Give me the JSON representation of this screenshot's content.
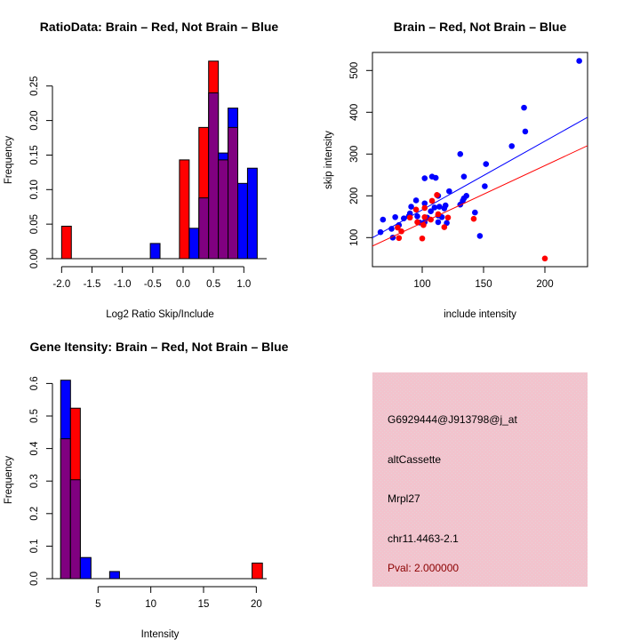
{
  "colors": {
    "brain": "#ff0000",
    "not_brain": "#0000ff",
    "overlap": "#800080",
    "panel_bg": "#f2c3cd",
    "pval": "#8b0000"
  },
  "chart_data": [
    {
      "type": "bar",
      "title": "RatioData: Brain – Red, Not Brain – Blue",
      "xlabel": "Log2 Ratio Skip/Include",
      "ylabel": "Frequency",
      "xticks": [
        -2.0,
        -1.5,
        -1.0,
        -0.5,
        0.0,
        0.5,
        1.0
      ],
      "xtick_labels": [
        "-2.0",
        "-1.5",
        "-1.0",
        "-0.5",
        "0.0",
        "0.5",
        "1.0"
      ],
      "yticks": [
        0,
        0.05,
        0.1,
        0.15,
        0.2,
        0.25
      ],
      "ytick_labels": [
        "0.00",
        "0.05",
        "0.10",
        "0.15",
        "0.20",
        "0.25"
      ],
      "bin_edges": [
        [
          -2.0,
          -1.84
        ],
        [
          -0.54,
          -0.38
        ],
        [
          -0.06,
          0.1
        ],
        [
          0.1,
          0.26
        ],
        [
          0.26,
          0.42
        ],
        [
          0.42,
          0.58
        ],
        [
          0.58,
          0.74
        ],
        [
          0.74,
          0.9
        ],
        [
          0.9,
          1.06
        ],
        [
          1.06,
          1.22
        ]
      ],
      "series": [
        {
          "name": "Brain",
          "color": "red",
          "values": [
            0.047,
            0,
            0.143,
            0,
            0.19,
            0.286,
            0.143,
            0.19,
            0,
            0
          ]
        },
        {
          "name": "Not Brain",
          "color": "blue",
          "values": [
            0,
            0.022,
            0,
            0.044,
            0.088,
            0.24,
            0.153,
            0.218,
            0.109,
            0.131
          ]
        }
      ]
    },
    {
      "type": "scatter",
      "title": "Brain – Red, Not Brain – Blue",
      "xlabel": "include intensity",
      "ylabel": "skip intensity",
      "xlim": [
        59,
        235
      ],
      "ylim": [
        30,
        543
      ],
      "xticks": [
        100,
        150,
        200
      ],
      "xtick_labels": [
        "100",
        "150",
        "200"
      ],
      "yticks": [
        100,
        200,
        300,
        400,
        500
      ],
      "ytick_labels": [
        "100",
        "200",
        "300",
        "400",
        "500"
      ],
      "series": [
        {
          "name": "Not Brain",
          "color": "blue",
          "points": [
            [
              228,
              523
            ],
            [
              183,
              411
            ],
            [
              184,
              354
            ],
            [
              173,
              319
            ],
            [
              131,
              300
            ],
            [
              152,
              276
            ],
            [
              151,
              223
            ],
            [
              134,
              246
            ],
            [
              108,
              246
            ],
            [
              111,
              243
            ],
            [
              102,
              242
            ],
            [
              122,
              211
            ],
            [
              113,
              200
            ],
            [
              136,
              200
            ],
            [
              134,
              194
            ],
            [
              133,
              188
            ],
            [
              131,
              179
            ],
            [
              95,
              189
            ],
            [
              102,
              182
            ],
            [
              91,
              174
            ],
            [
              110,
              172
            ],
            [
              114,
              174
            ],
            [
              119,
              177
            ],
            [
              118,
              170
            ],
            [
              107,
              163
            ],
            [
              90,
              158
            ],
            [
              96,
              151
            ],
            [
              89,
              151
            ],
            [
              116,
              149
            ],
            [
              104,
              148
            ],
            [
              85,
              146
            ],
            [
              78,
              149
            ],
            [
              68,
              143
            ],
            [
              81,
              130
            ],
            [
              75,
              121
            ],
            [
              66,
              113
            ],
            [
              76,
              100
            ],
            [
              98,
              136
            ],
            [
              102,
              137
            ],
            [
              113,
              137
            ],
            [
              120,
              135
            ],
            [
              143,
              160
            ],
            [
              147,
              104
            ],
            [
              113,
              153
            ]
          ],
          "fit": {
            "intercept": 2.0,
            "slope": 1.644
          }
        },
        {
          "name": "Brain",
          "color": "red",
          "points": [
            [
              200,
              50
            ],
            [
              142,
              145
            ],
            [
              108,
              188
            ],
            [
              112,
              202
            ],
            [
              102,
              171
            ],
            [
              95,
              167
            ],
            [
              90,
              148
            ],
            [
              102,
              149
            ],
            [
              107,
              143
            ],
            [
              121,
              148
            ],
            [
              113,
              156
            ],
            [
              118,
              125
            ],
            [
              100,
              98
            ],
            [
              81,
              99
            ],
            [
              83,
              115
            ],
            [
              80,
              124
            ],
            [
              101,
              130
            ],
            [
              96,
              137
            ]
          ],
          "fit": {
            "intercept": -1.6,
            "slope": 1.37
          }
        }
      ]
    },
    {
      "type": "bar",
      "title": "Gene Itensity: Brain – Red, Not Brain – Blue",
      "xlabel": "Intensity",
      "ylabel": "Frequency",
      "xticks": [
        5,
        10,
        15,
        20
      ],
      "xtick_labels": [
        "5",
        "10",
        "15",
        "20"
      ],
      "yticks": [
        0,
        0.1,
        0.2,
        0.3,
        0.4,
        0.5,
        0.6
      ],
      "ytick_labels": [
        "0.0",
        "0.1",
        "0.2",
        "0.3",
        "0.4",
        "0.5",
        "0.6"
      ],
      "bin_edges": [
        [
          1.46,
          2.39
        ],
        [
          2.39,
          3.32
        ],
        [
          3.32,
          4.33
        ],
        [
          6.1,
          7.03
        ],
        [
          19.6,
          20.58
        ]
      ],
      "series": [
        {
          "name": "Brain",
          "color": "red",
          "values": [
            0.43,
            0.524,
            0,
            0,
            0.048
          ]
        },
        {
          "name": "Not Brain",
          "color": "blue",
          "values": [
            0.61,
            0.304,
            0.065,
            0.022,
            0
          ]
        }
      ]
    }
  ],
  "info_panel": {
    "probe_id": "G6929444@J913798@j_at",
    "event_type": "altCassette",
    "gene": "Mrpl27",
    "location": "chr11.4463-2.1",
    "pval": "Pval: 2.000000"
  }
}
